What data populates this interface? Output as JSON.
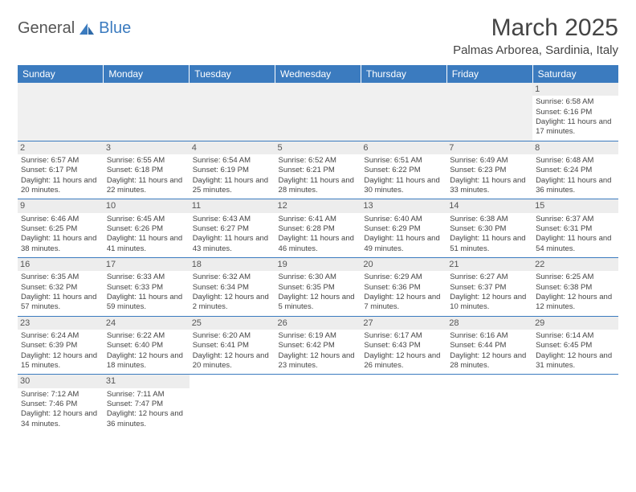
{
  "brand": {
    "part1": "General",
    "part2": "Blue",
    "icon_color": "#3b7bbf"
  },
  "title": "March 2025",
  "location": "Palmas Arborea, Sardinia, Italy",
  "colors": {
    "header_bg": "#3b7bbf",
    "header_fg": "#ffffff",
    "cell_border": "#3b7bbf",
    "daynum_bg": "#ededed",
    "text": "#444444"
  },
  "weekdays": [
    "Sunday",
    "Monday",
    "Tuesday",
    "Wednesday",
    "Thursday",
    "Friday",
    "Saturday"
  ],
  "weeks": [
    [
      null,
      null,
      null,
      null,
      null,
      null,
      {
        "d": "1",
        "sr": "Sunrise: 6:58 AM",
        "ss": "Sunset: 6:16 PM",
        "dl": "Daylight: 11 hours and 17 minutes."
      }
    ],
    [
      {
        "d": "2",
        "sr": "Sunrise: 6:57 AM",
        "ss": "Sunset: 6:17 PM",
        "dl": "Daylight: 11 hours and 20 minutes."
      },
      {
        "d": "3",
        "sr": "Sunrise: 6:55 AM",
        "ss": "Sunset: 6:18 PM",
        "dl": "Daylight: 11 hours and 22 minutes."
      },
      {
        "d": "4",
        "sr": "Sunrise: 6:54 AM",
        "ss": "Sunset: 6:19 PM",
        "dl": "Daylight: 11 hours and 25 minutes."
      },
      {
        "d": "5",
        "sr": "Sunrise: 6:52 AM",
        "ss": "Sunset: 6:21 PM",
        "dl": "Daylight: 11 hours and 28 minutes."
      },
      {
        "d": "6",
        "sr": "Sunrise: 6:51 AM",
        "ss": "Sunset: 6:22 PM",
        "dl": "Daylight: 11 hours and 30 minutes."
      },
      {
        "d": "7",
        "sr": "Sunrise: 6:49 AM",
        "ss": "Sunset: 6:23 PM",
        "dl": "Daylight: 11 hours and 33 minutes."
      },
      {
        "d": "8",
        "sr": "Sunrise: 6:48 AM",
        "ss": "Sunset: 6:24 PM",
        "dl": "Daylight: 11 hours and 36 minutes."
      }
    ],
    [
      {
        "d": "9",
        "sr": "Sunrise: 6:46 AM",
        "ss": "Sunset: 6:25 PM",
        "dl": "Daylight: 11 hours and 38 minutes."
      },
      {
        "d": "10",
        "sr": "Sunrise: 6:45 AM",
        "ss": "Sunset: 6:26 PM",
        "dl": "Daylight: 11 hours and 41 minutes."
      },
      {
        "d": "11",
        "sr": "Sunrise: 6:43 AM",
        "ss": "Sunset: 6:27 PM",
        "dl": "Daylight: 11 hours and 43 minutes."
      },
      {
        "d": "12",
        "sr": "Sunrise: 6:41 AM",
        "ss": "Sunset: 6:28 PM",
        "dl": "Daylight: 11 hours and 46 minutes."
      },
      {
        "d": "13",
        "sr": "Sunrise: 6:40 AM",
        "ss": "Sunset: 6:29 PM",
        "dl": "Daylight: 11 hours and 49 minutes."
      },
      {
        "d": "14",
        "sr": "Sunrise: 6:38 AM",
        "ss": "Sunset: 6:30 PM",
        "dl": "Daylight: 11 hours and 51 minutes."
      },
      {
        "d": "15",
        "sr": "Sunrise: 6:37 AM",
        "ss": "Sunset: 6:31 PM",
        "dl": "Daylight: 11 hours and 54 minutes."
      }
    ],
    [
      {
        "d": "16",
        "sr": "Sunrise: 6:35 AM",
        "ss": "Sunset: 6:32 PM",
        "dl": "Daylight: 11 hours and 57 minutes."
      },
      {
        "d": "17",
        "sr": "Sunrise: 6:33 AM",
        "ss": "Sunset: 6:33 PM",
        "dl": "Daylight: 11 hours and 59 minutes."
      },
      {
        "d": "18",
        "sr": "Sunrise: 6:32 AM",
        "ss": "Sunset: 6:34 PM",
        "dl": "Daylight: 12 hours and 2 minutes."
      },
      {
        "d": "19",
        "sr": "Sunrise: 6:30 AM",
        "ss": "Sunset: 6:35 PM",
        "dl": "Daylight: 12 hours and 5 minutes."
      },
      {
        "d": "20",
        "sr": "Sunrise: 6:29 AM",
        "ss": "Sunset: 6:36 PM",
        "dl": "Daylight: 12 hours and 7 minutes."
      },
      {
        "d": "21",
        "sr": "Sunrise: 6:27 AM",
        "ss": "Sunset: 6:37 PM",
        "dl": "Daylight: 12 hours and 10 minutes."
      },
      {
        "d": "22",
        "sr": "Sunrise: 6:25 AM",
        "ss": "Sunset: 6:38 PM",
        "dl": "Daylight: 12 hours and 12 minutes."
      }
    ],
    [
      {
        "d": "23",
        "sr": "Sunrise: 6:24 AM",
        "ss": "Sunset: 6:39 PM",
        "dl": "Daylight: 12 hours and 15 minutes."
      },
      {
        "d": "24",
        "sr": "Sunrise: 6:22 AM",
        "ss": "Sunset: 6:40 PM",
        "dl": "Daylight: 12 hours and 18 minutes."
      },
      {
        "d": "25",
        "sr": "Sunrise: 6:20 AM",
        "ss": "Sunset: 6:41 PM",
        "dl": "Daylight: 12 hours and 20 minutes."
      },
      {
        "d": "26",
        "sr": "Sunrise: 6:19 AM",
        "ss": "Sunset: 6:42 PM",
        "dl": "Daylight: 12 hours and 23 minutes."
      },
      {
        "d": "27",
        "sr": "Sunrise: 6:17 AM",
        "ss": "Sunset: 6:43 PM",
        "dl": "Daylight: 12 hours and 26 minutes."
      },
      {
        "d": "28",
        "sr": "Sunrise: 6:16 AM",
        "ss": "Sunset: 6:44 PM",
        "dl": "Daylight: 12 hours and 28 minutes."
      },
      {
        "d": "29",
        "sr": "Sunrise: 6:14 AM",
        "ss": "Sunset: 6:45 PM",
        "dl": "Daylight: 12 hours and 31 minutes."
      }
    ],
    [
      {
        "d": "30",
        "sr": "Sunrise: 7:12 AM",
        "ss": "Sunset: 7:46 PM",
        "dl": "Daylight: 12 hours and 34 minutes."
      },
      {
        "d": "31",
        "sr": "Sunrise: 7:11 AM",
        "ss": "Sunset: 7:47 PM",
        "dl": "Daylight: 12 hours and 36 minutes."
      },
      null,
      null,
      null,
      null,
      null
    ]
  ]
}
